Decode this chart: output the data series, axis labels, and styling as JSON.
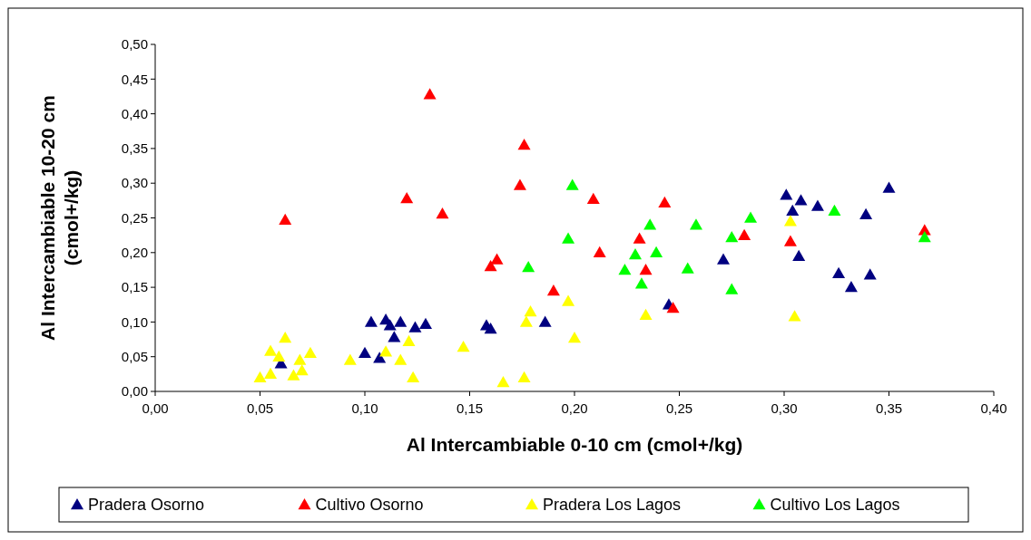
{
  "chart_data": {
    "type": "scatter",
    "xlabel": "Al Intercambiable 0-10 cm (cmol+/kg)",
    "ylabel": "Al Intercambiable 10-20 cm\n(cmol+/kg)",
    "xlim": [
      0,
      0.4
    ],
    "xticks": [
      {
        "value": 0,
        "label": "0,00"
      },
      {
        "value": 0.05,
        "label": "0,05"
      },
      {
        "value": 0.1,
        "label": "0,10"
      },
      {
        "value": 0.15,
        "label": "0,15"
      },
      {
        "value": 0.2,
        "label": "0,20"
      },
      {
        "value": 0.25,
        "label": "0,25"
      },
      {
        "value": 0.3,
        "label": "0,30"
      },
      {
        "value": 0.35,
        "label": "0,35"
      },
      {
        "value": 0.4,
        "label": "0,40"
      }
    ],
    "ylim": [
      0,
      0.5
    ],
    "yticks": [
      {
        "value": 0,
        "label": "0,00"
      },
      {
        "value": 0.05,
        "label": "0,05"
      },
      {
        "value": 0.1,
        "label": "0,10"
      },
      {
        "value": 0.15,
        "label": "0,15"
      },
      {
        "value": 0.2,
        "label": "0,20"
      },
      {
        "value": 0.25,
        "label": "0,25"
      },
      {
        "value": 0.3,
        "label": "0,30"
      },
      {
        "value": 0.35,
        "label": "0,35"
      },
      {
        "value": 0.4,
        "label": "0,40"
      },
      {
        "value": 0.45,
        "label": "0,45"
      },
      {
        "value": 0.5,
        "label": "0,50"
      }
    ],
    "grid": false,
    "legend": "bottom",
    "marker": "triangle",
    "series": [
      {
        "name": "Pradera Osorno",
        "color": "#000080",
        "x": [
          0.06,
          0.1,
          0.107,
          0.103,
          0.11,
          0.112,
          0.114,
          0.117,
          0.124,
          0.129,
          0.158,
          0.16,
          0.186,
          0.245,
          0.271,
          0.301,
          0.304,
          0.308,
          0.307,
          0.316,
          0.326,
          0.332,
          0.339,
          0.341,
          0.35
        ],
        "values": [
          0.04,
          0.055,
          0.048,
          0.1,
          0.103,
          0.095,
          0.078,
          0.1,
          0.092,
          0.097,
          0.095,
          0.09,
          0.1,
          0.125,
          0.19,
          0.283,
          0.26,
          0.275,
          0.195,
          0.267,
          0.17,
          0.15,
          0.255,
          0.168,
          0.293
        ]
      },
      {
        "name": "Cultivo Osorno",
        "color": "#ff0000",
        "x": [
          0.062,
          0.131,
          0.12,
          0.137,
          0.174,
          0.176,
          0.16,
          0.163,
          0.19,
          0.209,
          0.212,
          0.231,
          0.234,
          0.243,
          0.247,
          0.281,
          0.303,
          0.367
        ],
        "values": [
          0.247,
          0.428,
          0.278,
          0.256,
          0.297,
          0.355,
          0.18,
          0.19,
          0.145,
          0.277,
          0.2,
          0.22,
          0.175,
          0.272,
          0.12,
          0.225,
          0.216,
          0.232
        ]
      },
      {
        "name": "Pradera Los Lagos",
        "color": "#ffff00",
        "x": [
          0.05,
          0.055,
          0.055,
          0.059,
          0.062,
          0.066,
          0.07,
          0.069,
          0.074,
          0.093,
          0.11,
          0.117,
          0.121,
          0.123,
          0.147,
          0.166,
          0.176,
          0.177,
          0.179,
          0.197,
          0.2,
          0.234,
          0.303,
          0.305
        ],
        "values": [
          0.02,
          0.025,
          0.058,
          0.05,
          0.077,
          0.023,
          0.03,
          0.045,
          0.055,
          0.045,
          0.057,
          0.045,
          0.072,
          0.02,
          0.064,
          0.013,
          0.02,
          0.1,
          0.115,
          0.13,
          0.077,
          0.11,
          0.245,
          0.108
        ]
      },
      {
        "name": "Cultivo Los Lagos",
        "color": "#00ff00",
        "x": [
          0.199,
          0.197,
          0.178,
          0.224,
          0.229,
          0.232,
          0.236,
          0.239,
          0.258,
          0.254,
          0.275,
          0.275,
          0.284,
          0.324,
          0.367
        ],
        "values": [
          0.297,
          0.22,
          0.179,
          0.175,
          0.197,
          0.155,
          0.24,
          0.2,
          0.24,
          0.177,
          0.147,
          0.222,
          0.25,
          0.26,
          0.222
        ]
      }
    ]
  }
}
